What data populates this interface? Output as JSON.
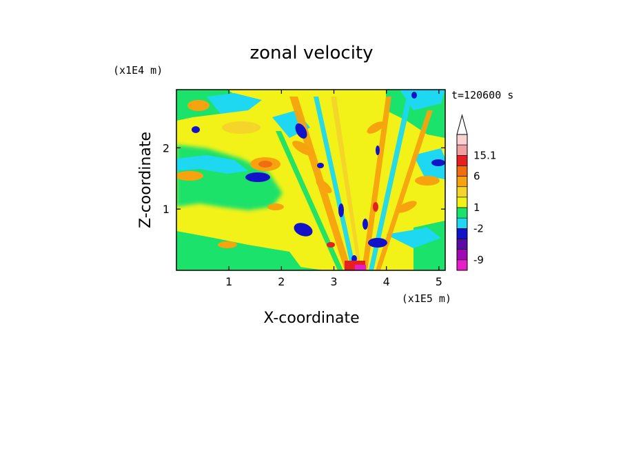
{
  "chart_data": {
    "type": "heatmap",
    "title": "zonal velocity",
    "xlabel": "X-coordinate",
    "ylabel": "Z-coordinate",
    "x_unit": "(x1E5 m)",
    "y_unit": "(x1E4 m)",
    "time_label": "t=120600 s",
    "xlim": [
      0,
      5.12
    ],
    "ylim": [
      0,
      2.95
    ],
    "x_ticks": [
      {
        "value": 1,
        "label": "1"
      },
      {
        "value": 2,
        "label": "2"
      },
      {
        "value": 3,
        "label": "3"
      },
      {
        "value": 4,
        "label": "4"
      },
      {
        "value": 5,
        "label": "5"
      }
    ],
    "y_ticks": [
      {
        "value": 1,
        "label": "1"
      },
      {
        "value": 2,
        "label": "2"
      }
    ],
    "colorbar": {
      "levels_from_top": [
        {
          "color": "#fad2d2",
          "label": ""
        },
        {
          "color": "#f0a0a0",
          "label": "15.1"
        },
        {
          "color": "#e62020",
          "label": ""
        },
        {
          "color": "#f06e10",
          "label": "6"
        },
        {
          "color": "#f7a30f",
          "label": ""
        },
        {
          "color": "#f5d52a",
          "label": ""
        },
        {
          "color": "#f2f218",
          "label": "1"
        },
        {
          "color": "#1be26a",
          "label": ""
        },
        {
          "color": "#1ed8f2",
          "label": "-2"
        },
        {
          "color": "#1212c8",
          "label": ""
        },
        {
          "color": "#5a0aa5",
          "label": ""
        },
        {
          "color": "#a00ab4",
          "label": "-9"
        },
        {
          "color": "#e61ec8",
          "label": ""
        }
      ]
    }
  }
}
